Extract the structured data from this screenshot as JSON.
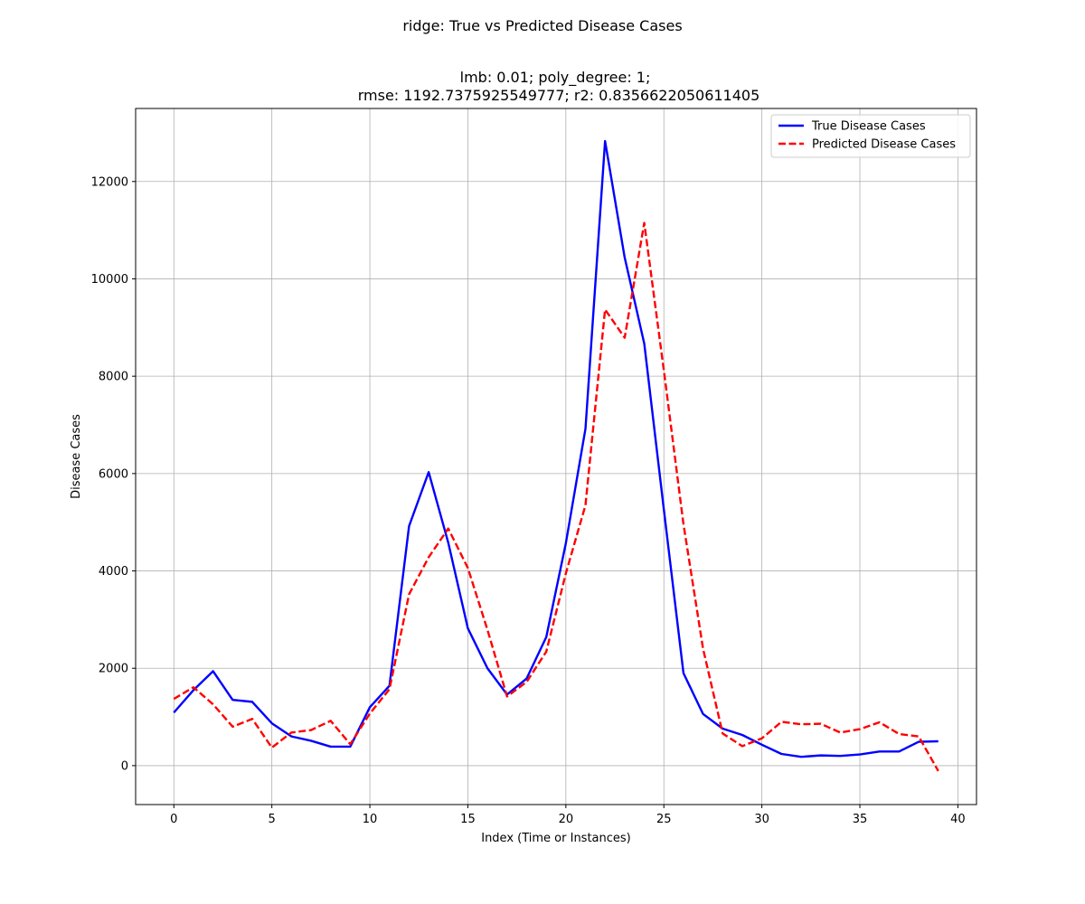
{
  "chart_data": {
    "type": "line",
    "suptitle": "ridge: True vs Predicted Disease Cases",
    "title_lines": [
      "lmb: 0.01; poly_degree: 1;",
      "rmse: 1192.7375925549777; r2: 0.8356622050611405"
    ],
    "xlabel": "Index (Time or Instances)",
    "ylabel": "Disease Cases",
    "xlim": [
      -1.95,
      40.95
    ],
    "ylim": [
      -800,
      13500
    ],
    "xticks": [
      0,
      5,
      10,
      15,
      20,
      25,
      30,
      35,
      40
    ],
    "yticks": [
      0,
      2000,
      4000,
      6000,
      8000,
      10000,
      12000
    ],
    "grid": true,
    "legend_position": "upper right",
    "x": [
      0,
      1,
      2,
      3,
      4,
      5,
      6,
      7,
      8,
      9,
      10,
      11,
      12,
      13,
      14,
      15,
      16,
      17,
      18,
      19,
      20,
      21,
      22,
      23,
      24,
      25,
      26,
      27,
      28,
      29,
      30,
      31,
      32,
      33,
      34,
      35,
      36,
      37,
      38,
      39
    ],
    "series": [
      {
        "name": "True Disease Cases",
        "color": "#0000ff",
        "style": "solid",
        "values": [
          1090,
          1550,
          1940,
          1350,
          1310,
          870,
          600,
          510,
          390,
          390,
          1200,
          1640,
          4920,
          6030,
          4580,
          2820,
          2000,
          1460,
          1790,
          2640,
          4570,
          6920,
          12830,
          10440,
          8670,
          5260,
          1900,
          1060,
          760,
          630,
          430,
          240,
          180,
          210,
          200,
          230,
          290,
          290,
          490,
          500
        ]
      },
      {
        "name": "Predicted Disease Cases",
        "color": "#ff0000",
        "style": "dashed",
        "values": [
          1370,
          1610,
          1260,
          800,
          960,
          370,
          680,
          730,
          920,
          440,
          1070,
          1570,
          3520,
          4280,
          4870,
          4060,
          2790,
          1420,
          1720,
          2340,
          3950,
          5350,
          9370,
          8790,
          11150,
          8120,
          4960,
          2400,
          660,
          400,
          560,
          900,
          850,
          860,
          680,
          750,
          890,
          650,
          600,
          -110
        ]
      }
    ]
  }
}
